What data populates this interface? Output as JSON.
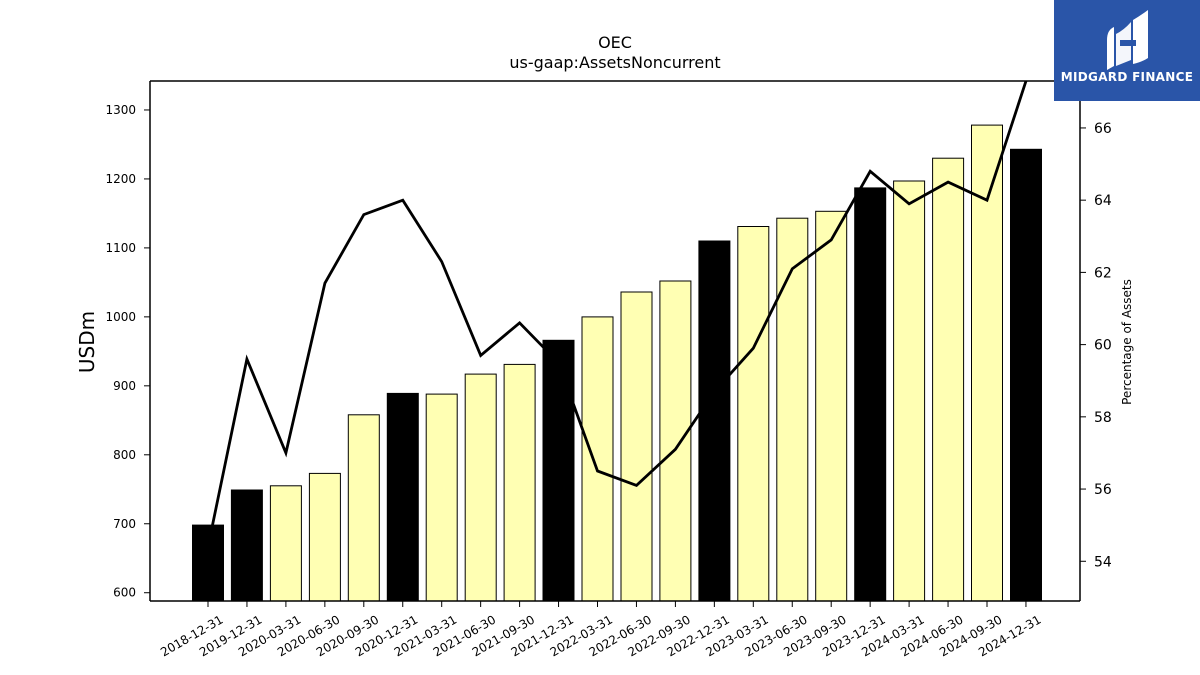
{
  "chart_data": {
    "type": "bar",
    "title": "OEC",
    "subtitle": "us-gaap:AssetsNoncurrent",
    "ylabel": "USDm",
    "ylabel_right": "Percentage of Assets",
    "ylim": [
      588,
      1342
    ],
    "ylim_right": [
      52.9,
      67.3
    ],
    "yticks": [
      600,
      700,
      800,
      900,
      1000,
      1100,
      1200,
      1300
    ],
    "yticks_right": [
      54,
      56,
      58,
      60,
      62,
      64,
      66
    ],
    "grid": false,
    "categories": [
      "2018-12-31",
      "2019-12-31",
      "2020-03-31",
      "2020-06-30",
      "2020-09-30",
      "2020-12-31",
      "2021-03-31",
      "2021-06-30",
      "2021-09-30",
      "2021-12-31",
      "2022-03-31",
      "2022-06-30",
      "2022-09-30",
      "2022-12-31",
      "2023-03-31",
      "2023-06-30",
      "2023-09-30",
      "2023-12-31",
      "2024-03-31",
      "2024-06-30",
      "2024-09-30",
      "2024-12-31"
    ],
    "series": [
      {
        "kind": "bar",
        "values": [
          698,
          749,
          755,
          773,
          858,
          889,
          888,
          917,
          931,
          966,
          1000,
          1036,
          1052,
          1110,
          1131,
          1143,
          1153,
          1187,
          1197,
          1230,
          1278,
          1243
        ],
        "annual": [
          true,
          true,
          false,
          false,
          false,
          true,
          false,
          false,
          false,
          true,
          false,
          false,
          false,
          true,
          false,
          false,
          false,
          true,
          false,
          false,
          false,
          true
        ]
      },
      {
        "kind": "line",
        "axis": "right",
        "values": [
          54.4,
          59.6,
          57.0,
          61.7,
          63.6,
          64.0,
          62.3,
          59.7,
          60.6,
          59.5,
          56.5,
          56.1,
          57.1,
          58.7,
          59.9,
          62.1,
          62.9,
          64.8,
          63.9,
          64.5,
          64.0,
          67.3
        ]
      }
    ],
    "colors": {
      "annual_bar": "#000000",
      "quarterly_bar": "#ffffb3",
      "bar_edge": "#000000",
      "line": "#000000"
    }
  },
  "logo": {
    "text": "MIDGARD FINANCE",
    "background": "#2a55a8"
  }
}
